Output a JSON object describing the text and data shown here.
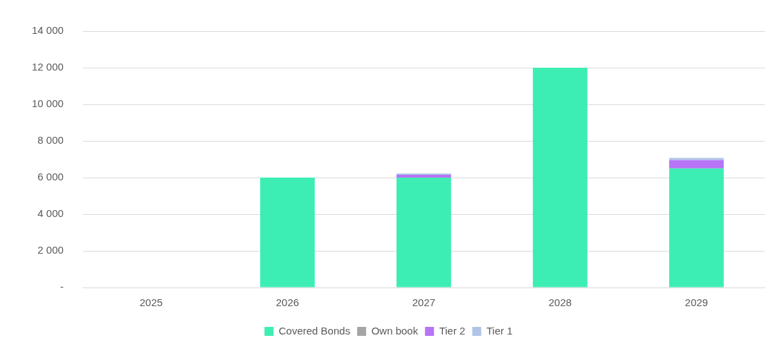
{
  "chart_data": {
    "type": "bar",
    "stacked": true,
    "categories": [
      "2025",
      "2026",
      "2027",
      "2028",
      "2029"
    ],
    "series": [
      {
        "name": "Covered Bonds",
        "color": "#3deeb4",
        "values": [
          0,
          6000,
          6000,
          12000,
          6500
        ]
      },
      {
        "name": "Own book",
        "color": "#a5a5a5",
        "values": [
          0,
          0,
          0,
          0,
          0
        ]
      },
      {
        "name": "Tier 2",
        "color": "#b774f7",
        "values": [
          0,
          0,
          150,
          0,
          450
        ]
      },
      {
        "name": "Tier 1",
        "color": "#b0c4e8",
        "values": [
          0,
          0,
          80,
          0,
          130
        ]
      }
    ],
    "ylim": [
      0,
      14000
    ],
    "yticks": [
      {
        "value": 0,
        "label": "-"
      },
      {
        "value": 2000,
        "label": "2 000"
      },
      {
        "value": 4000,
        "label": "4 000"
      },
      {
        "value": 6000,
        "label": "6 000"
      },
      {
        "value": 8000,
        "label": "8 000"
      },
      {
        "value": 10000,
        "label": "10 000"
      },
      {
        "value": 12000,
        "label": "12 000"
      },
      {
        "value": 14000,
        "label": "14 000"
      }
    ],
    "grid": "y",
    "legend": "bottom"
  }
}
